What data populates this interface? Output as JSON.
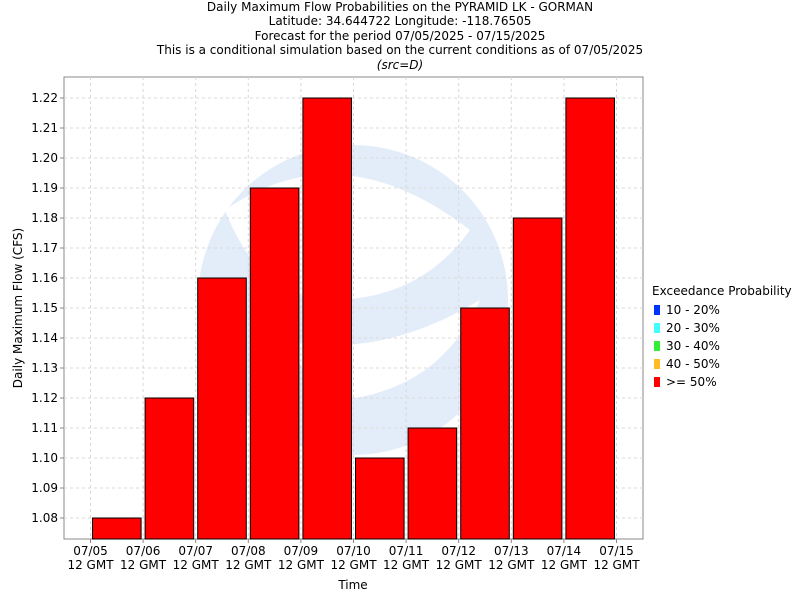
{
  "titles": {
    "line1": "Daily Maximum Flow Probabilities on the PYRAMID LK - GORMAN",
    "line2": "Latitude: 34.644722 Longitude: -118.76505",
    "line3": "Forecast for the period 07/05/2025 - 07/15/2025",
    "line4": "This is a conditional simulation based on the current conditions as of 07/05/2025",
    "line5": "(src=D)"
  },
  "legend": {
    "title": "Exceedance Probability",
    "items": [
      {
        "label": "10 - 20%",
        "color": "#0033ff"
      },
      {
        "label": "20 - 30%",
        "color": "#44ffff"
      },
      {
        "label": "30 - 40%",
        "color": "#33ee33"
      },
      {
        "label": "40 - 50%",
        "color": "#ffbb22"
      },
      {
        "label": ">= 50%",
        "color": "#ff0000"
      }
    ]
  },
  "chart_data": {
    "type": "bar",
    "xlabel": "Time",
    "ylabel": "Daily Maximum Flow (CFS)",
    "x_ticks": [
      {
        "date": "07/05",
        "time": "12 GMT"
      },
      {
        "date": "07/06",
        "time": "12 GMT"
      },
      {
        "date": "07/07",
        "time": "12 GMT"
      },
      {
        "date": "07/08",
        "time": "12 GMT"
      },
      {
        "date": "07/09",
        "time": "12 GMT"
      },
      {
        "date": "07/10",
        "time": "12 GMT"
      },
      {
        "date": "07/11",
        "time": "12 GMT"
      },
      {
        "date": "07/12",
        "time": "12 GMT"
      },
      {
        "date": "07/13",
        "time": "12 GMT"
      },
      {
        "date": "07/14",
        "time": "12 GMT"
      },
      {
        "date": "07/15",
        "time": "12 GMT"
      }
    ],
    "y_ticks": [
      "1.08",
      "1.09",
      "1.10",
      "1.11",
      "1.12",
      "1.13",
      "1.14",
      "1.15",
      "1.16",
      "1.17",
      "1.18",
      "1.19",
      "1.20",
      "1.21",
      "1.22"
    ],
    "ylim": [
      1.073,
      1.227
    ],
    "grid": true,
    "series": [
      {
        "name": ">= 50%",
        "color": "#ff0000",
        "values": [
          1.08,
          1.12,
          1.16,
          1.19,
          1.22,
          1.1,
          1.11,
          1.15,
          1.18,
          1.22
        ]
      }
    ]
  }
}
